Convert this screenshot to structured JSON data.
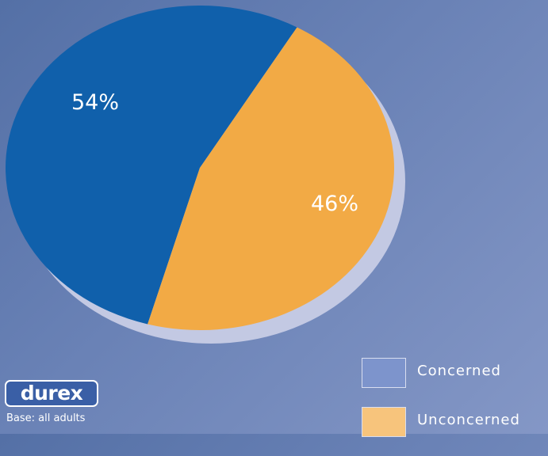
{
  "chart_data": {
    "type": "pie",
    "categories": [
      "Concerned",
      "Unconcerned"
    ],
    "values": [
      54,
      46
    ],
    "data_labels": [
      "54%",
      "46%"
    ],
    "colors": [
      "#1060ab",
      "#f2aa45"
    ],
    "legend_colors": [
      "#7d94cc",
      "#f7c47c"
    ],
    "shadow_color": "#c3c9e3",
    "legend_position": "bottom-right"
  },
  "legend": {
    "items": [
      {
        "label": "Concerned"
      },
      {
        "label": "Unconcerned"
      }
    ]
  },
  "logo": {
    "text": "durex"
  },
  "footnote": "Base: all adults"
}
